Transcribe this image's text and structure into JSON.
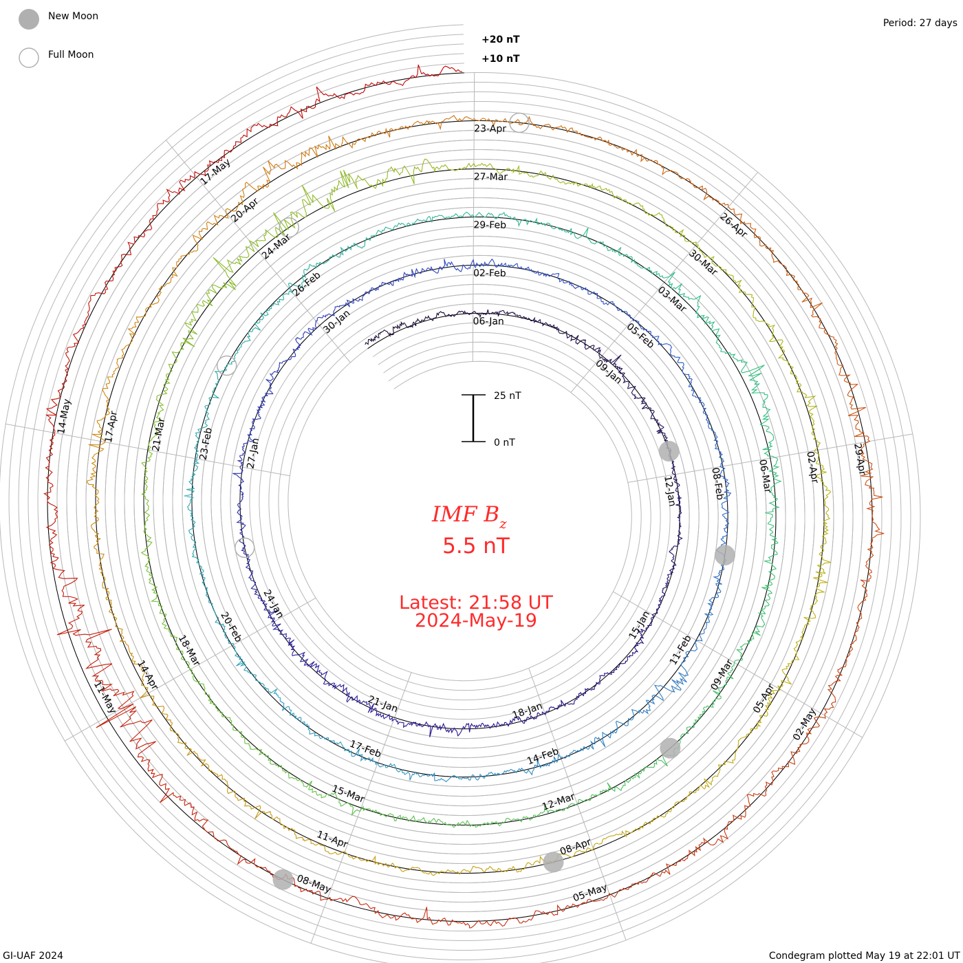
{
  "legend": {
    "new_moon": "New Moon",
    "full_moon": "Full Moon"
  },
  "period_label": "Period: 27 days",
  "footer_left": "GI-UAF 2024",
  "footer_right": "Condegram plotted May 19 at 22:01 UT",
  "center": {
    "title": "IMF B",
    "title_sub": "z",
    "value": "5.5 nT",
    "latest": "Latest: 21:58 UT",
    "date": "2024-May-19"
  },
  "scale_bar": {
    "top_label": "25 nT",
    "bottom_label": "0 nT",
    "span_nT": 25
  },
  "chart_data": {
    "type": "line",
    "subtype": "spiral-condegram",
    "title": "IMF Bz",
    "units": "nT",
    "period_days": 27,
    "start_date": "2024-01-03",
    "end_date": "2024-05-19",
    "ring_labels": [
      "+20 nT",
      "+10 nT"
    ],
    "grid_step_nT": 5,
    "date_labels": [
      "06-Jan",
      "09-Jan",
      "12-Jan",
      "15-Jan",
      "18-Jan",
      "21-Jan",
      "24-Jan",
      "27-Jan",
      "30-Jan",
      "02-Feb",
      "05-Feb",
      "08-Feb",
      "11-Feb",
      "14-Feb",
      "17-Feb",
      "20-Feb",
      "23-Feb",
      "26-Feb",
      "29-Feb",
      "03-Mar",
      "06-Mar",
      "09-Mar",
      "12-Mar",
      "15-Mar",
      "18-Mar",
      "21-Mar",
      "24-Mar",
      "27-Mar",
      "30-Mar",
      "02-Apr",
      "05-Apr",
      "08-Apr",
      "11-Apr",
      "14-Apr",
      "17-Apr",
      "20-Apr",
      "23-Apr",
      "26-Apr",
      "29-Apr",
      "02-May",
      "05-May",
      "08-May",
      "11-May",
      "14-May",
      "17-May"
    ],
    "new_moon_days_from_start": [
      8,
      37,
      67,
      96,
      126
    ],
    "full_moon_days_from_start": [
      22,
      52,
      81,
      111
    ],
    "daily_mean_nT": [
      2,
      1,
      0,
      1,
      0,
      0,
      -1,
      1,
      0,
      0,
      -1,
      0,
      1,
      0,
      0,
      -1,
      0,
      1,
      0,
      -1,
      0,
      1,
      0,
      0,
      -1,
      0,
      1,
      0,
      0,
      1,
      0,
      -1,
      0,
      1,
      0,
      0,
      -1,
      0,
      1,
      2,
      -1,
      0,
      0,
      1,
      0,
      0,
      -1,
      0,
      0,
      1,
      0,
      0,
      -1,
      0,
      0,
      1,
      1,
      0,
      0,
      1,
      2,
      3,
      1,
      0,
      1,
      0,
      0,
      1,
      0,
      0,
      -1,
      0,
      1,
      0,
      0,
      1,
      0,
      -1,
      0,
      1,
      3,
      5,
      3,
      1,
      0,
      1,
      0,
      0,
      1,
      0,
      1,
      0,
      0,
      1,
      0,
      -1,
      0,
      0,
      1,
      0,
      0,
      -1,
      0,
      0,
      1,
      2,
      0,
      3,
      2,
      0,
      1,
      0,
      0,
      1,
      0,
      -1,
      0,
      1,
      0,
      1,
      -2,
      0,
      0,
      1,
      0,
      -1,
      0,
      -3,
      -10,
      -6,
      -2,
      1,
      2,
      0,
      1,
      2,
      0,
      2
    ],
    "daily_spread_nT": [
      4,
      3,
      2,
      2,
      3,
      4,
      4,
      3,
      2,
      2,
      3,
      2,
      2,
      3,
      3,
      3,
      4,
      4,
      5,
      5,
      4,
      3,
      3,
      3,
      4,
      3,
      3,
      3,
      4,
      4,
      3,
      3,
      2,
      3,
      3,
      3,
      4,
      3,
      3,
      7,
      4,
      3,
      3,
      3,
      3,
      3,
      3,
      3,
      2,
      3,
      3,
      3,
      3,
      4,
      4,
      3,
      3,
      2,
      3,
      4,
      6,
      7,
      6,
      5,
      4,
      4,
      4,
      4,
      3,
      3,
      4,
      4,
      3,
      3,
      3,
      3,
      4,
      4,
      5,
      6,
      8,
      9,
      6,
      4,
      3,
      3,
      3,
      4,
      4,
      4,
      4,
      4,
      5,
      4,
      3,
      3,
      4,
      3,
      3,
      4,
      4,
      4,
      3,
      4,
      5,
      4,
      4,
      7,
      7,
      4,
      3,
      3,
      3,
      4,
      4,
      5,
      5,
      4,
      3,
      6,
      6,
      4,
      3,
      4,
      4,
      4,
      3,
      6,
      15,
      12,
      6,
      4,
      4,
      4,
      5,
      5,
      4,
      4
    ],
    "colors": [
      "#1a0a30",
      "#2a1490",
      "#2f4fc8",
      "#30a0c0",
      "#30c080",
      "#7cc030",
      "#c0b010",
      "#d08010",
      "#c83010",
      "#c00000"
    ],
    "moon_color": "#b0b0b0",
    "grid_color": "#b8b8b8"
  }
}
